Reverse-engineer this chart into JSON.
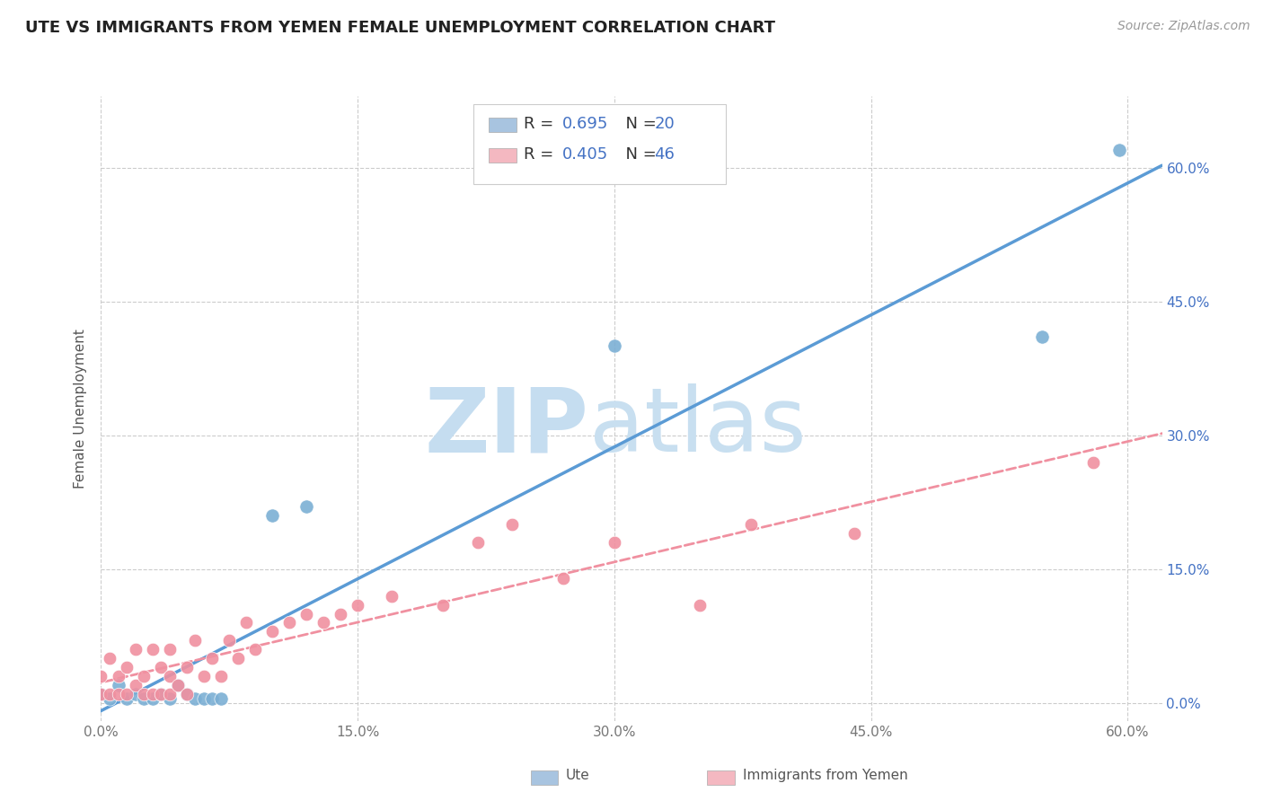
{
  "title": "UTE VS IMMIGRANTS FROM YEMEN FEMALE UNEMPLOYMENT CORRELATION CHART",
  "source": "Source: ZipAtlas.com",
  "ylabel": "Female Unemployment",
  "xlim": [
    0.0,
    0.62
  ],
  "ylim": [
    -0.02,
    0.68
  ],
  "yticks": [
    0.0,
    0.15,
    0.3,
    0.45,
    0.6
  ],
  "ytick_labels": [
    "0.0%",
    "15.0%",
    "30.0%",
    "45.0%",
    "60.0%"
  ],
  "xticks": [
    0.0,
    0.15,
    0.3,
    0.45,
    0.6
  ],
  "xtick_labels": [
    "0.0%",
    "15.0%",
    "30.0%",
    "45.0%",
    "60.0%"
  ],
  "ute_scatter_color": "#7bafd4",
  "ute_line_color": "#5b9bd5",
  "ute_legend_color": "#a8c4e0",
  "yemen_scatter_color": "#f090a0",
  "yemen_line_color": "#f090a0",
  "yemen_legend_color": "#f4b8c1",
  "ute_R": "0.695",
  "ute_N": "20",
  "yemen_R": "0.405",
  "yemen_N": "46",
  "legend_color": "#4472c4",
  "watermark_zip_color": "#c5ddf0",
  "watermark_atlas_color": "#c8dff0",
  "background_color": "#ffffff",
  "grid_color": "#cccccc",
  "right_tick_color": "#4472c4",
  "ute_points_x": [
    0.0,
    0.005,
    0.01,
    0.015,
    0.02,
    0.025,
    0.03,
    0.035,
    0.04,
    0.045,
    0.05,
    0.055,
    0.06,
    0.065,
    0.07,
    0.1,
    0.12,
    0.3,
    0.55,
    0.595
  ],
  "ute_points_y": [
    0.01,
    0.005,
    0.02,
    0.005,
    0.01,
    0.005,
    0.005,
    0.01,
    0.005,
    0.02,
    0.01,
    0.005,
    0.005,
    0.005,
    0.005,
    0.21,
    0.22,
    0.4,
    0.41,
    0.62
  ],
  "yemen_points_x": [
    0.0,
    0.0,
    0.005,
    0.005,
    0.01,
    0.01,
    0.015,
    0.015,
    0.02,
    0.02,
    0.025,
    0.025,
    0.03,
    0.03,
    0.035,
    0.035,
    0.04,
    0.04,
    0.04,
    0.045,
    0.05,
    0.05,
    0.055,
    0.06,
    0.065,
    0.07,
    0.075,
    0.08,
    0.085,
    0.09,
    0.1,
    0.11,
    0.12,
    0.13,
    0.14,
    0.15,
    0.17,
    0.2,
    0.22,
    0.24,
    0.27,
    0.3,
    0.35,
    0.38,
    0.44,
    0.58
  ],
  "yemen_points_y": [
    0.01,
    0.03,
    0.01,
    0.05,
    0.01,
    0.03,
    0.01,
    0.04,
    0.02,
    0.06,
    0.01,
    0.03,
    0.01,
    0.06,
    0.01,
    0.04,
    0.01,
    0.03,
    0.06,
    0.02,
    0.01,
    0.04,
    0.07,
    0.03,
    0.05,
    0.03,
    0.07,
    0.05,
    0.09,
    0.06,
    0.08,
    0.09,
    0.1,
    0.09,
    0.1,
    0.11,
    0.12,
    0.11,
    0.18,
    0.2,
    0.14,
    0.18,
    0.11,
    0.2,
    0.19,
    0.27
  ]
}
